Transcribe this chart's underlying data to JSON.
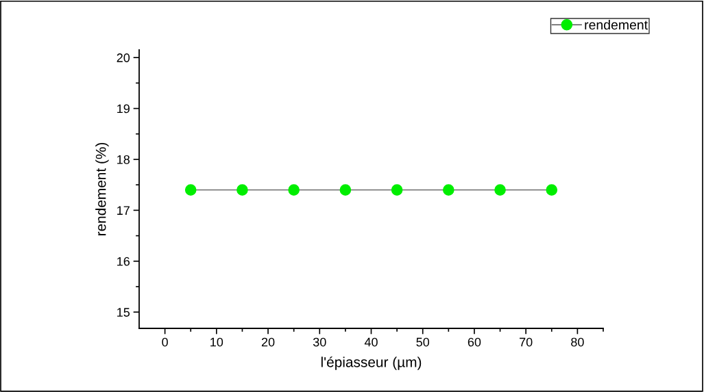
{
  "chart_data": {
    "type": "line",
    "xlabel": "l'épiasseur (µm)",
    "ylabel": "rendement (%)",
    "x": [
      5,
      15,
      25,
      35,
      45,
      55,
      65,
      75
    ],
    "series": [
      {
        "name": "rendement",
        "color": "#00ee00",
        "values": [
          17.4,
          17.4,
          17.4,
          17.4,
          17.4,
          17.4,
          17.4,
          17.4
        ]
      }
    ],
    "xlim": [
      -5,
      85
    ],
    "xticks": [
      0,
      10,
      20,
      30,
      40,
      50,
      60,
      70,
      80
    ],
    "ylim": [
      14.68,
      20.15
    ],
    "yticks": [
      15,
      16,
      17,
      18,
      19,
      20
    ],
    "grid": false,
    "legend": "top right",
    "marker": "circle",
    "line_style": "solid"
  }
}
